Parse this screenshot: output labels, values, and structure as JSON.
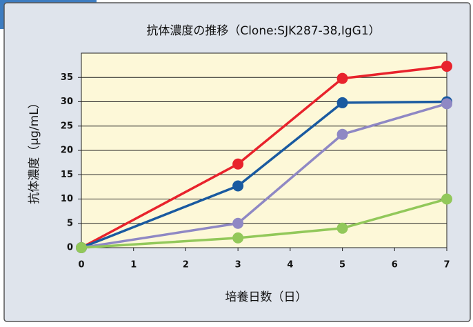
{
  "chart_data": {
    "type": "line",
    "title": "抗体濃度の推移（Clone:SJK287-38,IgG1）",
    "xlabel": "培養日数（日）",
    "ylabel": "抗体濃度（μg/mL）",
    "x": [
      0,
      3,
      5,
      7
    ],
    "series": [
      {
        "color": "#e8232c",
        "values": [
          0,
          17.2,
          34.8,
          37.3
        ]
      },
      {
        "color": "#1a5aa0",
        "values": [
          0,
          12.7,
          29.8,
          30
        ]
      },
      {
        "color": "#8f88c4",
        "values": [
          0,
          5,
          23.3,
          29.6
        ]
      },
      {
        "color": "#92c85a",
        "values": [
          0,
          2,
          4,
          10
        ]
      }
    ],
    "xlim": [
      0,
      7
    ],
    "xticks": [
      0,
      1,
      2,
      3,
      4,
      5,
      6,
      7
    ],
    "ylim": [
      0,
      40
    ],
    "yticks": [
      0,
      5,
      10,
      15,
      20,
      25,
      30,
      35
    ],
    "grid": true
  }
}
